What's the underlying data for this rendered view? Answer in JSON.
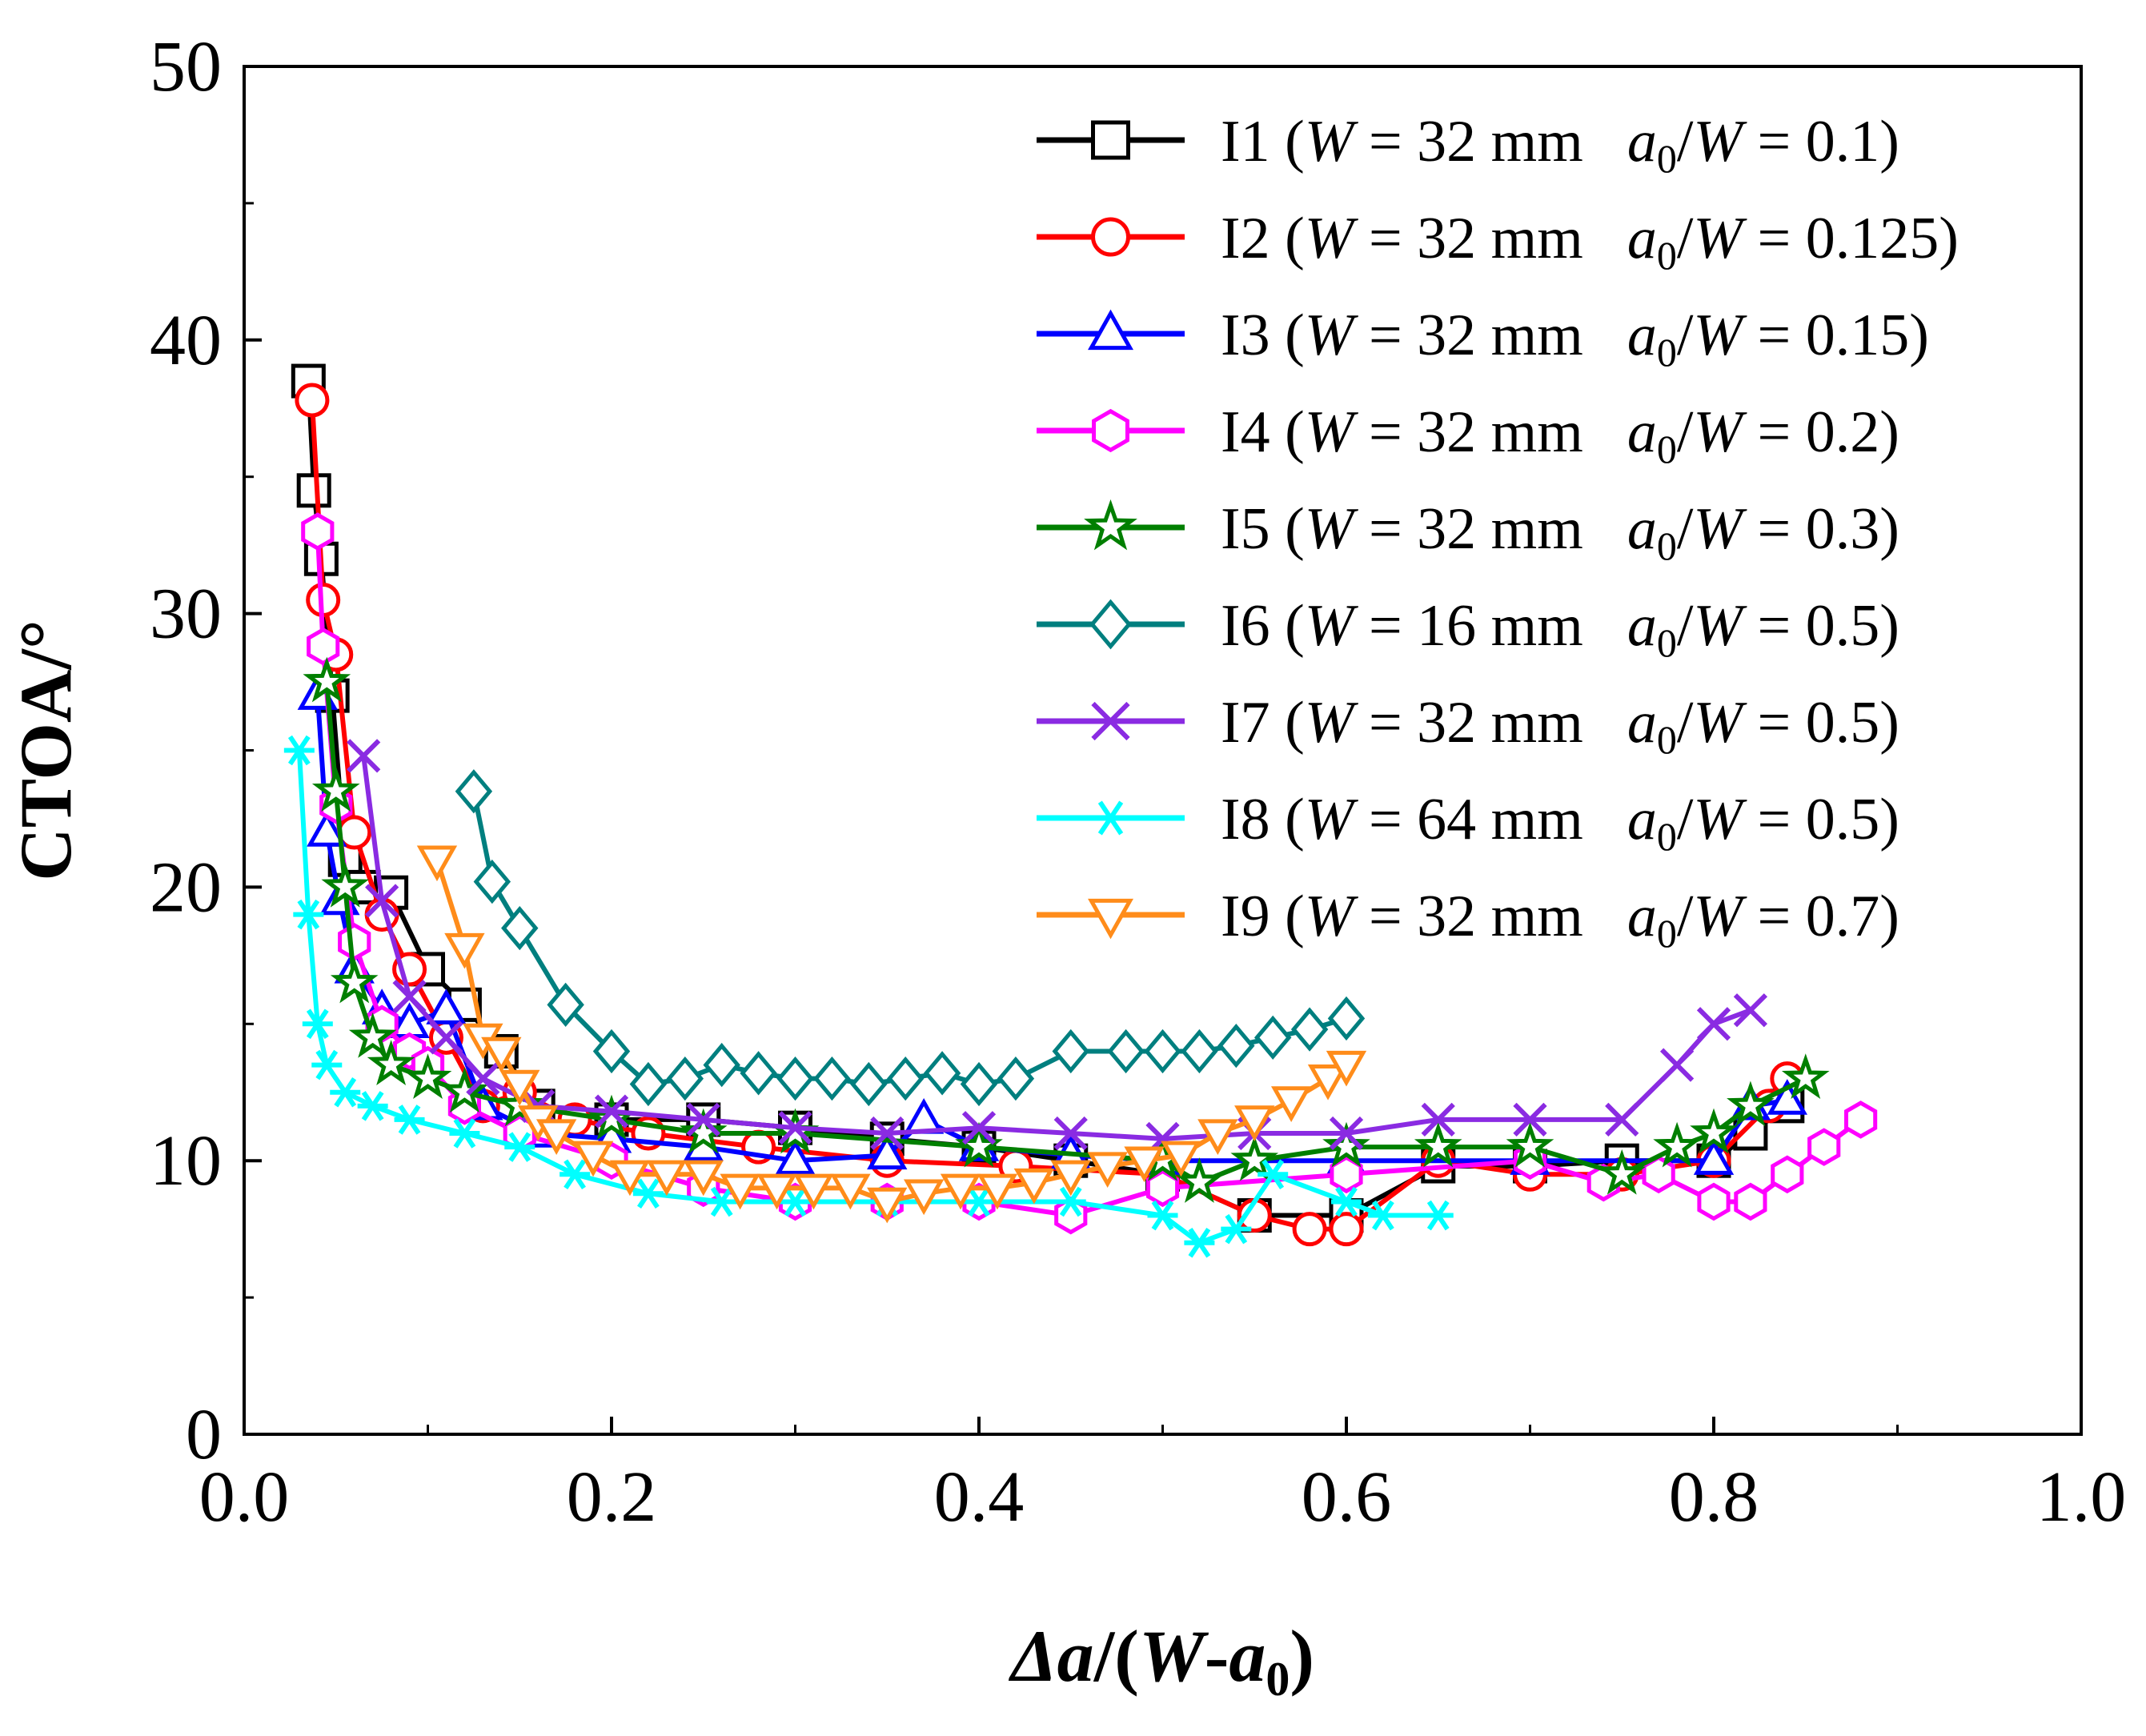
{
  "chart_data": {
    "type": "line",
    "title": "",
    "ylabel": "CTOA/°",
    "xlabel": "Δa/(W-a0)",
    "xlabel_parts": [
      "Δa",
      "/(",
      "W",
      "-",
      "a",
      "0",
      ")"
    ],
    "xlim": [
      0.0,
      1.0
    ],
    "ylim": [
      0,
      50
    ],
    "x_ticks": [
      "0.0",
      "0.2",
      "0.4",
      "0.6",
      "0.8",
      "1.0"
    ],
    "y_ticks": [
      "0",
      "10",
      "20",
      "30",
      "40",
      "50"
    ],
    "grid": false,
    "legend_position": "top-right",
    "series": [
      {
        "id": "I1",
        "label": {
          "pre": "I1 (",
          "W": "W",
          "eq": " = 32 mm",
          "a": "a",
          "sub": "0",
          "slash": "/",
          "W2": "W",
          "tail": " = 0.1)"
        },
        "color": "#000000",
        "marker": "square",
        "x": [
          0.035,
          0.038,
          0.042,
          0.048,
          0.055,
          0.065,
          0.08,
          0.1,
          0.12,
          0.14,
          0.16,
          0.2,
          0.25,
          0.3,
          0.35,
          0.4,
          0.45,
          0.5,
          0.55,
          0.6,
          0.65,
          0.7,
          0.75,
          0.8,
          0.82,
          0.84
        ],
        "y": [
          38.5,
          34.5,
          32,
          27,
          21,
          20,
          19.8,
          17,
          15.7,
          14,
          12,
          11.5,
          11.5,
          11.2,
          10.8,
          10.5,
          10,
          9.5,
          8,
          8,
          9.8,
          9.8,
          10,
          10,
          11,
          12
        ]
      },
      {
        "id": "I2",
        "label": {
          "pre": "I2 (",
          "W": "W",
          "eq": " = 32 mm",
          "a": "a",
          "sub": "0",
          "slash": "/",
          "W2": "W",
          "tail": " = 0.125)"
        },
        "color": "#ff0000",
        "marker": "circle",
        "x": [
          0.037,
          0.043,
          0.05,
          0.06,
          0.075,
          0.09,
          0.11,
          0.13,
          0.15,
          0.18,
          0.22,
          0.28,
          0.35,
          0.42,
          0.5,
          0.55,
          0.58,
          0.6,
          0.65,
          0.7,
          0.75,
          0.8,
          0.83,
          0.84
        ],
        "y": [
          37.8,
          30.5,
          28.5,
          22,
          19,
          17,
          14.5,
          12,
          12.5,
          11.5,
          11,
          10.5,
          10,
          9.8,
          9.5,
          8,
          7.5,
          7.5,
          10,
          9.5,
          9.5,
          10,
          12,
          13
        ]
      },
      {
        "id": "I3",
        "label": {
          "pre": "I3 (",
          "W": "W",
          "eq": " = 32 mm",
          "a": "a",
          "sub": "0",
          "slash": "/",
          "W2": "W",
          "tail": " = 0.15)"
        },
        "color": "#0000ff",
        "marker": "triangle",
        "x": [
          0.04,
          0.045,
          0.052,
          0.06,
          0.075,
          0.09,
          0.11,
          0.13,
          0.16,
          0.2,
          0.25,
          0.3,
          0.35,
          0.37,
          0.4,
          0.45,
          0.5,
          0.6,
          0.7,
          0.8,
          0.82,
          0.84
        ],
        "y": [
          27,
          22,
          19.5,
          17,
          15.5,
          15,
          15.5,
          12,
          11,
          10.8,
          10.5,
          10,
          10.2,
          11.5,
          10.5,
          10.2,
          10,
          10,
          10,
          10,
          12,
          12.2
        ]
      },
      {
        "id": "I4",
        "label": {
          "pre": "I4 (",
          "W": "W",
          "eq": " = 32 mm",
          "a": "a",
          "sub": "0",
          "slash": "/",
          "W2": "W",
          "tail": " = 0.2)"
        },
        "color": "#ff00ff",
        "marker": "hexagon",
        "x": [
          0.04,
          0.043,
          0.05,
          0.06,
          0.075,
          0.09,
          0.1,
          0.12,
          0.15,
          0.2,
          0.25,
          0.3,
          0.35,
          0.4,
          0.45,
          0.5,
          0.6,
          0.7,
          0.74,
          0.77,
          0.8,
          0.82,
          0.84,
          0.86,
          0.88
        ],
        "y": [
          33,
          28.8,
          23,
          18,
          15,
          14,
          13.5,
          12,
          11,
          10,
          9,
          8.5,
          8.5,
          8.5,
          8,
          9,
          9.5,
          10,
          9.2,
          9.5,
          8.5,
          8.5,
          9.5,
          10.5,
          11.5
        ]
      },
      {
        "id": "I5",
        "label": {
          "pre": "I5 (",
          "W": "W",
          "eq": " = 32 mm",
          "a": "a",
          "sub": "0",
          "slash": "/",
          "W2": "W",
          "tail": " = 0.3)"
        },
        "color": "#007f00",
        "marker": "star",
        "x": [
          0.045,
          0.05,
          0.055,
          0.06,
          0.07,
          0.08,
          0.1,
          0.12,
          0.15,
          0.2,
          0.25,
          0.3,
          0.4,
          0.5,
          0.52,
          0.55,
          0.6,
          0.65,
          0.7,
          0.75,
          0.78,
          0.8,
          0.82,
          0.85
        ],
        "y": [
          27.5,
          23.5,
          20,
          16.5,
          14.5,
          13.5,
          13,
          12.5,
          12,
          11.5,
          11,
          11,
          10.5,
          10,
          9.2,
          10,
          10.5,
          10.5,
          10.5,
          9.5,
          10.5,
          11,
          12,
          13
        ]
      },
      {
        "id": "I6",
        "label": {
          "pre": "I6 (",
          "W": "W",
          "eq": " = 16 mm",
          "a": "a",
          "sub": "0",
          "slash": "/",
          "W2": "W",
          "tail": " = 0.5)"
        },
        "color": "#007f7f",
        "marker": "diamond",
        "x": [
          0.125,
          0.135,
          0.15,
          0.175,
          0.2,
          0.22,
          0.24,
          0.26,
          0.28,
          0.3,
          0.32,
          0.34,
          0.36,
          0.38,
          0.4,
          0.42,
          0.45,
          0.48,
          0.5,
          0.52,
          0.54,
          0.56,
          0.58,
          0.6
        ],
        "y": [
          23.5,
          20.2,
          18.5,
          15.7,
          14,
          12.8,
          13,
          13.5,
          13.2,
          13,
          13,
          12.8,
          13,
          13.2,
          12.8,
          13,
          14,
          14,
          14,
          14,
          14.2,
          14.5,
          14.8,
          15.2
        ]
      },
      {
        "id": "I7",
        "label": {
          "pre": "I7 (",
          "W": "W",
          "eq": " = 32 mm",
          "a": "a",
          "sub": "0",
          "slash": "/",
          "W2": "W",
          "tail": " = 0.5)"
        },
        "color": "#8a2be2",
        "marker": "x",
        "x": [
          0.065,
          0.075,
          0.09,
          0.11,
          0.13,
          0.16,
          0.2,
          0.25,
          0.3,
          0.35,
          0.4,
          0.45,
          0.5,
          0.55,
          0.6,
          0.65,
          0.7,
          0.75,
          0.78,
          0.8,
          0.82
        ],
        "y": [
          24.8,
          19.5,
          16,
          14.5,
          13,
          12,
          11.8,
          11.5,
          11.2,
          11,
          11.2,
          11,
          10.8,
          11,
          11,
          11.5,
          11.5,
          11.5,
          13.5,
          15,
          15.5
        ]
      },
      {
        "id": "I8",
        "label": {
          "pre": "I8 (",
          "W": "W",
          "eq": " = 64 mm",
          "a": "a",
          "sub": "0",
          "slash": "/",
          "W2": "W",
          "tail": " = 0.5)"
        },
        "color": "#00ffff",
        "marker": "asterisk",
        "x": [
          0.03,
          0.035,
          0.04,
          0.045,
          0.055,
          0.07,
          0.09,
          0.12,
          0.15,
          0.18,
          0.22,
          0.26,
          0.3,
          0.35,
          0.4,
          0.45,
          0.5,
          0.52,
          0.54,
          0.56,
          0.6,
          0.62,
          0.65
        ],
        "y": [
          25,
          19,
          15,
          13.5,
          12.5,
          12,
          11.5,
          11,
          10.5,
          9.5,
          8.8,
          8.5,
          8.5,
          8.5,
          8.5,
          8.5,
          8,
          7,
          7.5,
          9.5,
          8.5,
          8,
          8
        ]
      },
      {
        "id": "I9",
        "label": {
          "pre": "I9 (",
          "W": "W",
          "eq": " = 32 mm",
          "a": "a",
          "sub": "0",
          "slash": "/",
          "W2": "W",
          "tail": " = 0.7)"
        },
        "color": "#ff8c1a",
        "marker": "triangle-down",
        "x": [
          0.105,
          0.12,
          0.13,
          0.14,
          0.15,
          0.16,
          0.17,
          0.19,
          0.21,
          0.23,
          0.25,
          0.27,
          0.29,
          0.31,
          0.33,
          0.35,
          0.37,
          0.39,
          0.41,
          0.43,
          0.45,
          0.47,
          0.49,
          0.51,
          0.53,
          0.55,
          0.57,
          0.59,
          0.6
        ],
        "y": [
          21,
          17.8,
          14.5,
          14,
          12.8,
          11.5,
          11,
          10.2,
          9.5,
          9.5,
          9.5,
          9,
          9,
          9,
          9,
          8.5,
          8.8,
          9,
          9,
          9.2,
          9.5,
          9.8,
          10,
          10.2,
          11,
          11.5,
          12.2,
          13,
          13.5
        ]
      }
    ]
  }
}
